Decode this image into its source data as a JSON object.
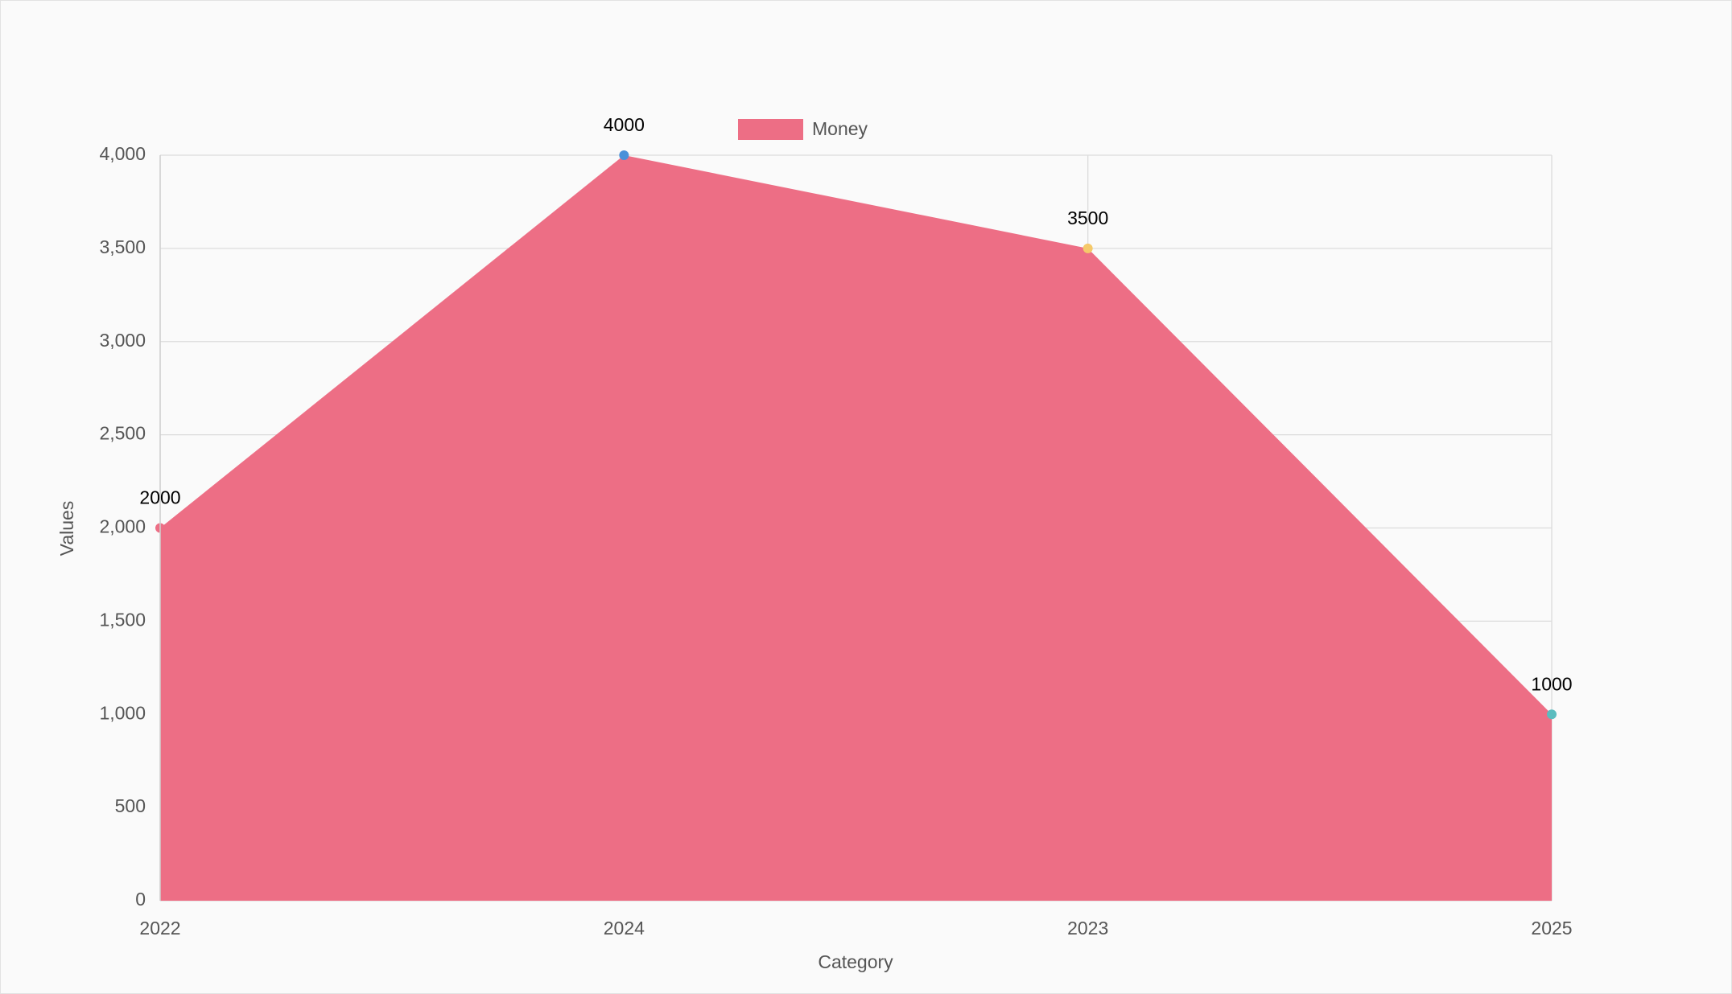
{
  "chart_data": {
    "type": "area",
    "categories": [
      "2022",
      "2024",
      "2023",
      "2025"
    ],
    "series": [
      {
        "name": "Money",
        "color": "#ed6e85",
        "point_colors": [
          "#ed6e85",
          "#4a90d9",
          "#f5c96a",
          "#5bbcbf"
        ],
        "values": [
          2000,
          4000,
          3500,
          1000
        ]
      }
    ],
    "x_label": "Category",
    "y_label": "Values",
    "ylim": [
      0,
      4000
    ],
    "yticks": [
      0,
      500,
      {
        "value": 1000,
        "label": "1,000"
      },
      {
        "value": 1500,
        "label": "1,500"
      },
      {
        "value": 2000,
        "label": "2,000"
      },
      {
        "value": 2500,
        "label": "2,500"
      },
      {
        "value": 3000,
        "label": "3,000"
      },
      {
        "value": 3500,
        "label": "3,500"
      },
      {
        "value": 4000,
        "label": "4,000"
      }
    ],
    "grid": true,
    "legend": "top",
    "data_labels": true
  }
}
